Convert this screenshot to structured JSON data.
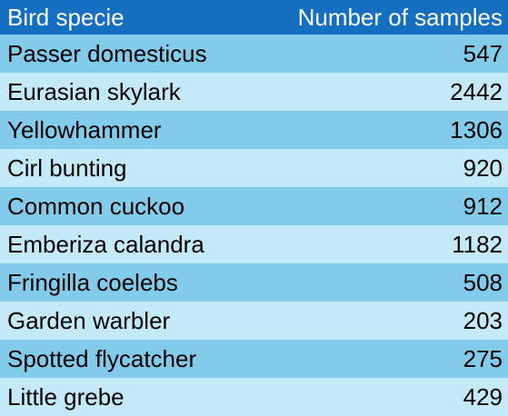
{
  "colors": {
    "header_bg": "#156fc1",
    "row_dark": "#83cbeb",
    "row_light": "#c4e9f9"
  },
  "table": {
    "headers": [
      "Bird specie",
      "Number of samples"
    ],
    "rows": [
      {
        "name": "Passer domesticus",
        "value": "547"
      },
      {
        "name": "Eurasian skylark",
        "value": "2442"
      },
      {
        "name": "Yellowhammer",
        "value": "1306"
      },
      {
        "name": "Cirl bunting",
        "value": "920"
      },
      {
        "name": "Common cuckoo",
        "value": "912"
      },
      {
        "name": "Emberiza calandra",
        "value": "1182"
      },
      {
        "name": "Fringilla coelebs",
        "value": "508"
      },
      {
        "name": "Garden warbler",
        "value": "203"
      },
      {
        "name": "Spotted flycatcher",
        "value": "275"
      },
      {
        "name": "Little grebe",
        "value": "429"
      }
    ]
  }
}
